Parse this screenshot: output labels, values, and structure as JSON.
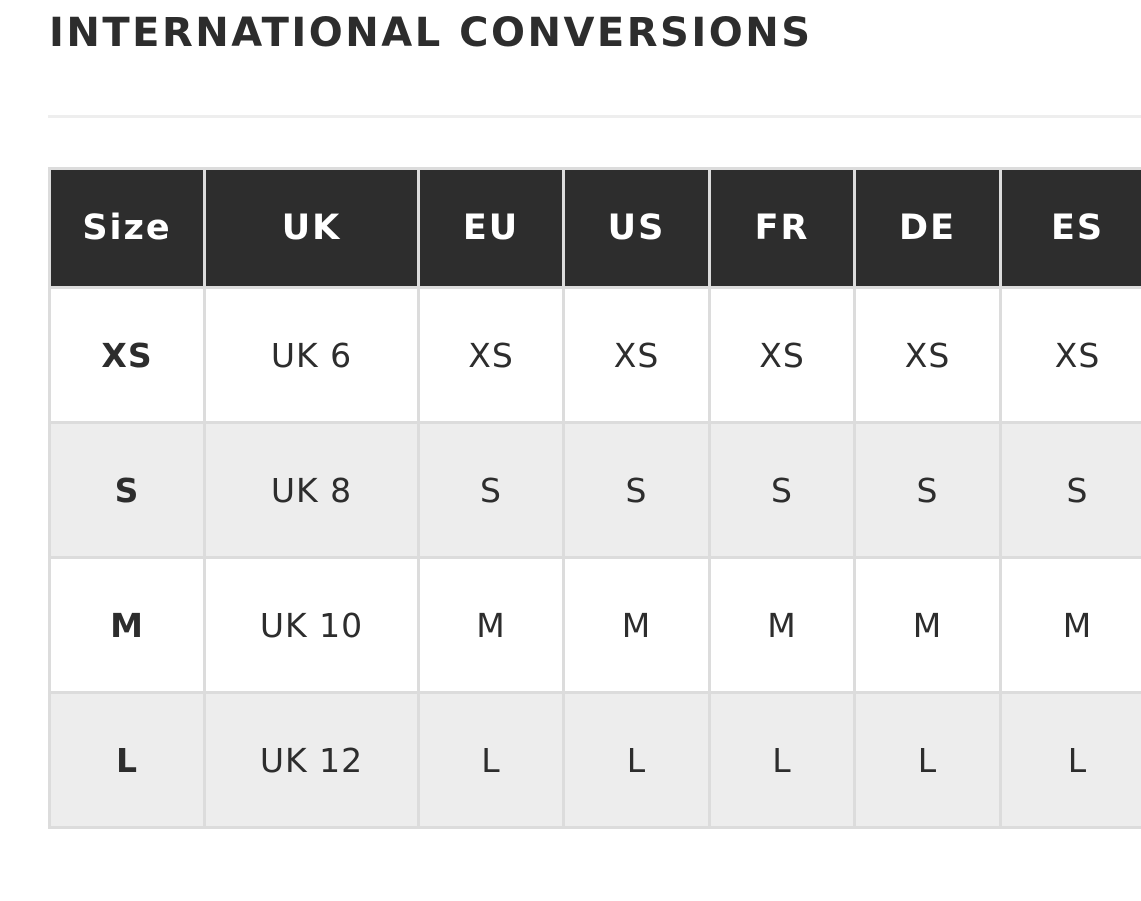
{
  "title": "INTERNATIONAL CONVERSIONS",
  "table": {
    "headers": [
      "Size",
      "UK",
      "EU",
      "US",
      "FR",
      "DE",
      "ES"
    ],
    "rows": [
      [
        "XS",
        "UK 6",
        "XS",
        "XS",
        "XS",
        "XS",
        "XS"
      ],
      [
        "S",
        "UK 8",
        "S",
        "S",
        "S",
        "S",
        "S"
      ],
      [
        "M",
        "UK 10",
        "M",
        "M",
        "M",
        "M",
        "M"
      ],
      [
        "L",
        "UK 12",
        "L",
        "L",
        "L",
        "L",
        "L"
      ]
    ]
  },
  "colors": {
    "header_bg": "#2d2d2d",
    "alt_row_bg": "#ededed",
    "border": "#dcdcdc"
  }
}
